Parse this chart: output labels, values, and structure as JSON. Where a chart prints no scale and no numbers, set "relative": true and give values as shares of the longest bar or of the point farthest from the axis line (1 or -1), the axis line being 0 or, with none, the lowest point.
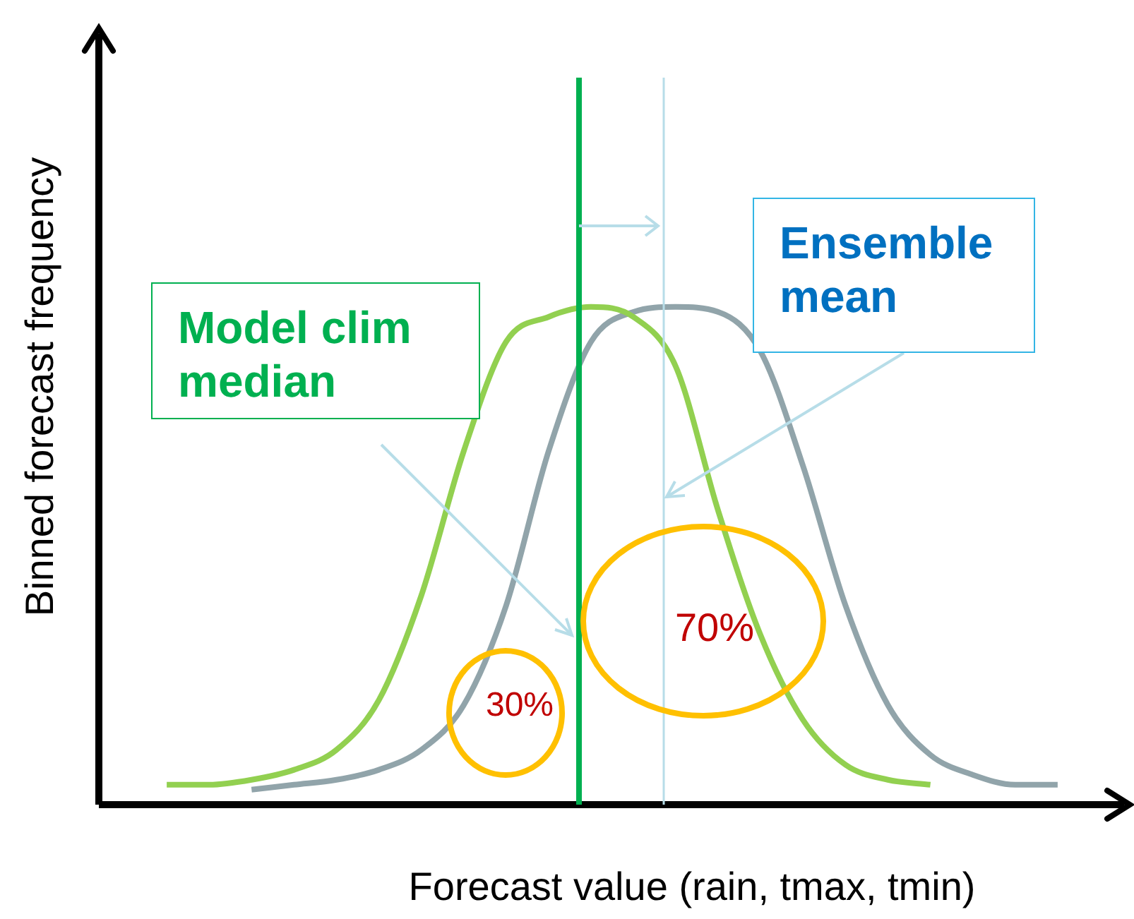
{
  "chart_data": {
    "type": "line",
    "relative": true,
    "xlabel": "Forecast value (rain, tmax, tmin)",
    "ylabel": "Binned forecast frequency",
    "categories": [
      null,
      null,
      null,
      null,
      null,
      null,
      null,
      null,
      null,
      null,
      null,
      null,
      null,
      null,
      null,
      null,
      null,
      null,
      null,
      null,
      null,
      null
    ],
    "series": [
      {
        "color": "#92d050",
        "values": [
          0.04,
          0.04,
          0.05,
          0.07,
          0.11,
          0.21,
          0.42,
          0.71,
          0.93,
          0.98,
          1,
          0.98,
          0.88,
          0.59,
          0.34,
          0.17,
          0.08,
          0.05,
          0.04,
          null,
          null,
          null
        ]
      },
      {
        "color": "#91a4aa",
        "values": [
          null,
          null,
          0.03,
          0.04,
          0.05,
          0.07,
          0.11,
          0.2,
          0.4,
          0.71,
          0.93,
          0.99,
          1,
          0.99,
          0.91,
          0.68,
          0.4,
          0.2,
          0.1,
          0.06,
          0.04,
          0.04
        ]
      }
    ],
    "annotations": [
      "Model clim median",
      "Ensemble mean",
      "30%",
      "70%"
    ],
    "legend": false,
    "marker": "none",
    "line_style": "solid"
  }
}
